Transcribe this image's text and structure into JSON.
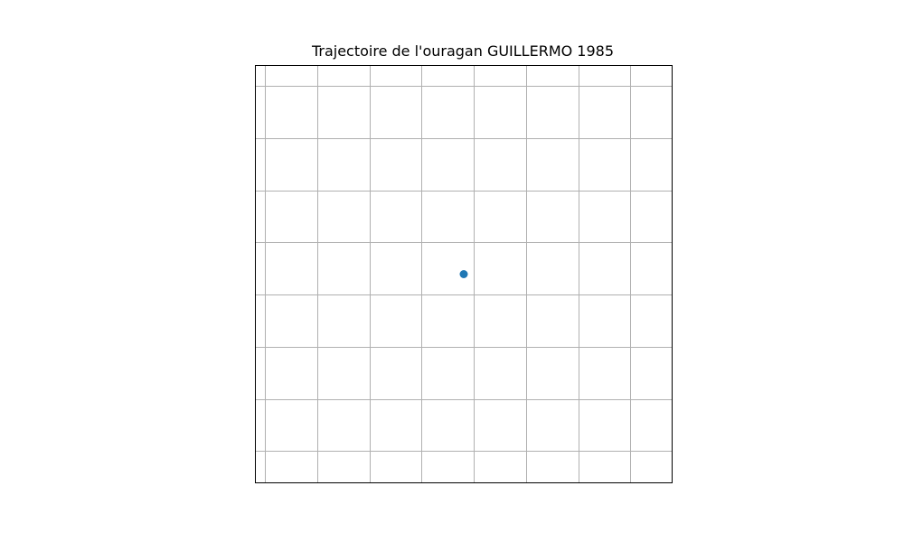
{
  "chart_data": {
    "type": "scatter",
    "title": "Trajectoire de l'ouragan GUILLERMO 1985",
    "xlabel": "",
    "ylabel": "",
    "grid": true,
    "axes_visible": false,
    "series": [
      {
        "marker": "circle",
        "color": "#1f77b4",
        "points": [
          {
            "x": 0.5,
            "y": 0.5
          }
        ]
      }
    ]
  }
}
